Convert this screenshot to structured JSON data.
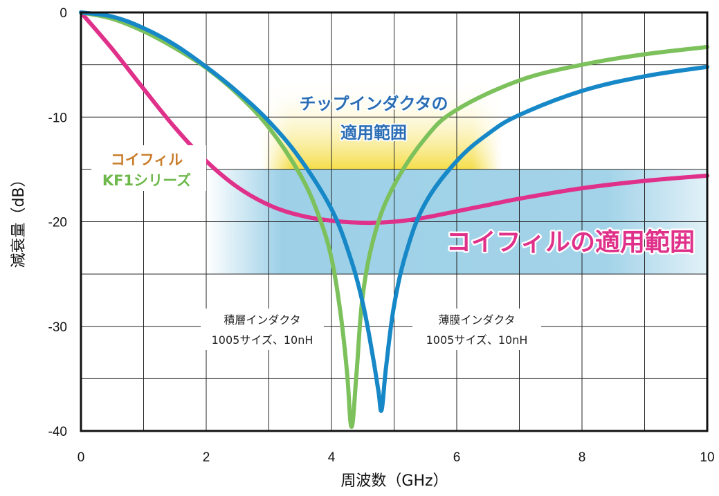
{
  "chart_data": {
    "type": "line",
    "xlabel": "周波数（GHz）",
    "ylabel": "減衰量（dB）",
    "xlim": [
      0,
      10
    ],
    "ylim": [
      -40,
      0
    ],
    "x_ticks": [
      "0",
      "2",
      "4",
      "6",
      "8",
      "10"
    ],
    "y_ticks": [
      "0",
      "-10",
      "-20",
      "-30",
      "-40"
    ],
    "grid": true,
    "series": [
      {
        "name": "コイフィル KF1シリーズ",
        "color": "#e0318a",
        "x": [
          0,
          0.5,
          1,
          1.5,
          2,
          2.5,
          3,
          3.5,
          4,
          4.5,
          5,
          5.5,
          6,
          6.5,
          7,
          8,
          9,
          10
        ],
        "y": [
          0,
          -3.5,
          -7.3,
          -11,
          -14.2,
          -16.7,
          -18.4,
          -19.4,
          -19.9,
          -20.1,
          -20,
          -19.6,
          -19,
          -18.4,
          -17.8,
          -16.8,
          -16.1,
          -15.6
        ]
      },
      {
        "name": "積層インダクタ 1005サイズ、10nH",
        "color": "#7cc15c",
        "x": [
          0,
          0.5,
          1,
          1.5,
          2,
          2.5,
          3,
          3.5,
          3.8,
          4.0,
          4.15,
          4.25,
          4.32,
          4.4,
          4.5,
          4.7,
          5.0,
          5.5,
          6,
          7,
          8,
          9,
          10
        ],
        "y": [
          0,
          -0.6,
          -1.8,
          -3.4,
          -5.3,
          -7.8,
          -11,
          -15.5,
          -19.5,
          -23.5,
          -29,
          -34.5,
          -39.6,
          -34.5,
          -27,
          -21,
          -16.5,
          -12,
          -9.3,
          -6.5,
          -5,
          -4,
          -3.3
        ]
      },
      {
        "name": "薄膜インダクタ 1005サイズ、10nH",
        "color": "#1788c7",
        "x": [
          0,
          0.5,
          1,
          1.5,
          2,
          2.5,
          3,
          3.5,
          4,
          4.3,
          4.5,
          4.65,
          4.75,
          4.8,
          4.87,
          5.0,
          5.2,
          5.5,
          6,
          6.5,
          7,
          8,
          9,
          10
        ],
        "y": [
          0,
          -0.4,
          -1.5,
          -3.1,
          -5.2,
          -7.6,
          -10.4,
          -14,
          -18.8,
          -23.4,
          -27.8,
          -32.5,
          -36.2,
          -38,
          -34,
          -28,
          -22.8,
          -18.2,
          -14.2,
          -11.6,
          -9.8,
          -7.5,
          -6.1,
          -5.2
        ]
      }
    ],
    "bands": [
      {
        "y_range": [
          -15,
          -6.5
        ],
        "x_range": [
          2.9,
          6.7
        ],
        "color": "#f3d829"
      },
      {
        "y_range": [
          -25,
          -15
        ],
        "x_range": [
          2.0,
          10
        ],
        "color": "#8cc8e3"
      }
    ],
    "annotations": {
      "chip_range_line1": "チップインダクタの",
      "chip_range_line2": "適用範囲",
      "coifil_range": "コイフィルの適用範囲",
      "coifil_name_line1": "コイフィル",
      "coifil_name_line2": "KF1シリーズ",
      "multilayer_line1": "積層インダクタ",
      "multilayer_line2": "1005サイズ、10nH",
      "thinfilm_line1": "薄膜インダクタ",
      "thinfilm_line2": "1005サイズ、10nH"
    }
  }
}
